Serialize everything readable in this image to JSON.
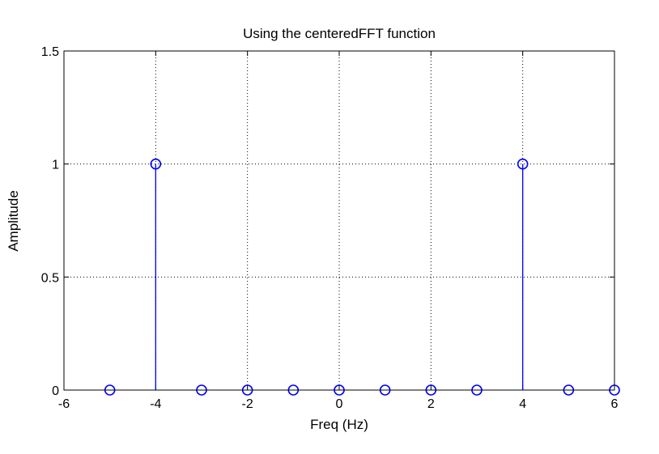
{
  "chart_data": {
    "type": "stem",
    "title": "Using the centeredFFT function",
    "xlabel": "Freq (Hz)",
    "ylabel": "Amplitude",
    "xlim": [
      -6,
      6
    ],
    "ylim": [
      0,
      1.5
    ],
    "xticks": [
      -6,
      -4,
      -2,
      0,
      2,
      4,
      6
    ],
    "yticks": [
      0,
      0.5,
      1,
      1.5
    ],
    "xtick_labels": [
      "-6",
      "-4",
      "-2",
      "0",
      "2",
      "4",
      "6"
    ],
    "ytick_labels": [
      "0",
      "0.5",
      "1",
      "1.5"
    ],
    "grid": true,
    "x": [
      -5,
      -4,
      -3,
      -2,
      -1,
      0,
      1,
      2,
      3,
      4,
      5,
      6
    ],
    "y": [
      0,
      1,
      0,
      0,
      0,
      0,
      0,
      0,
      0,
      1,
      0,
      0
    ],
    "colors": {
      "series": "#0000ff",
      "axes": "#000000",
      "background": "#ffffff"
    }
  }
}
